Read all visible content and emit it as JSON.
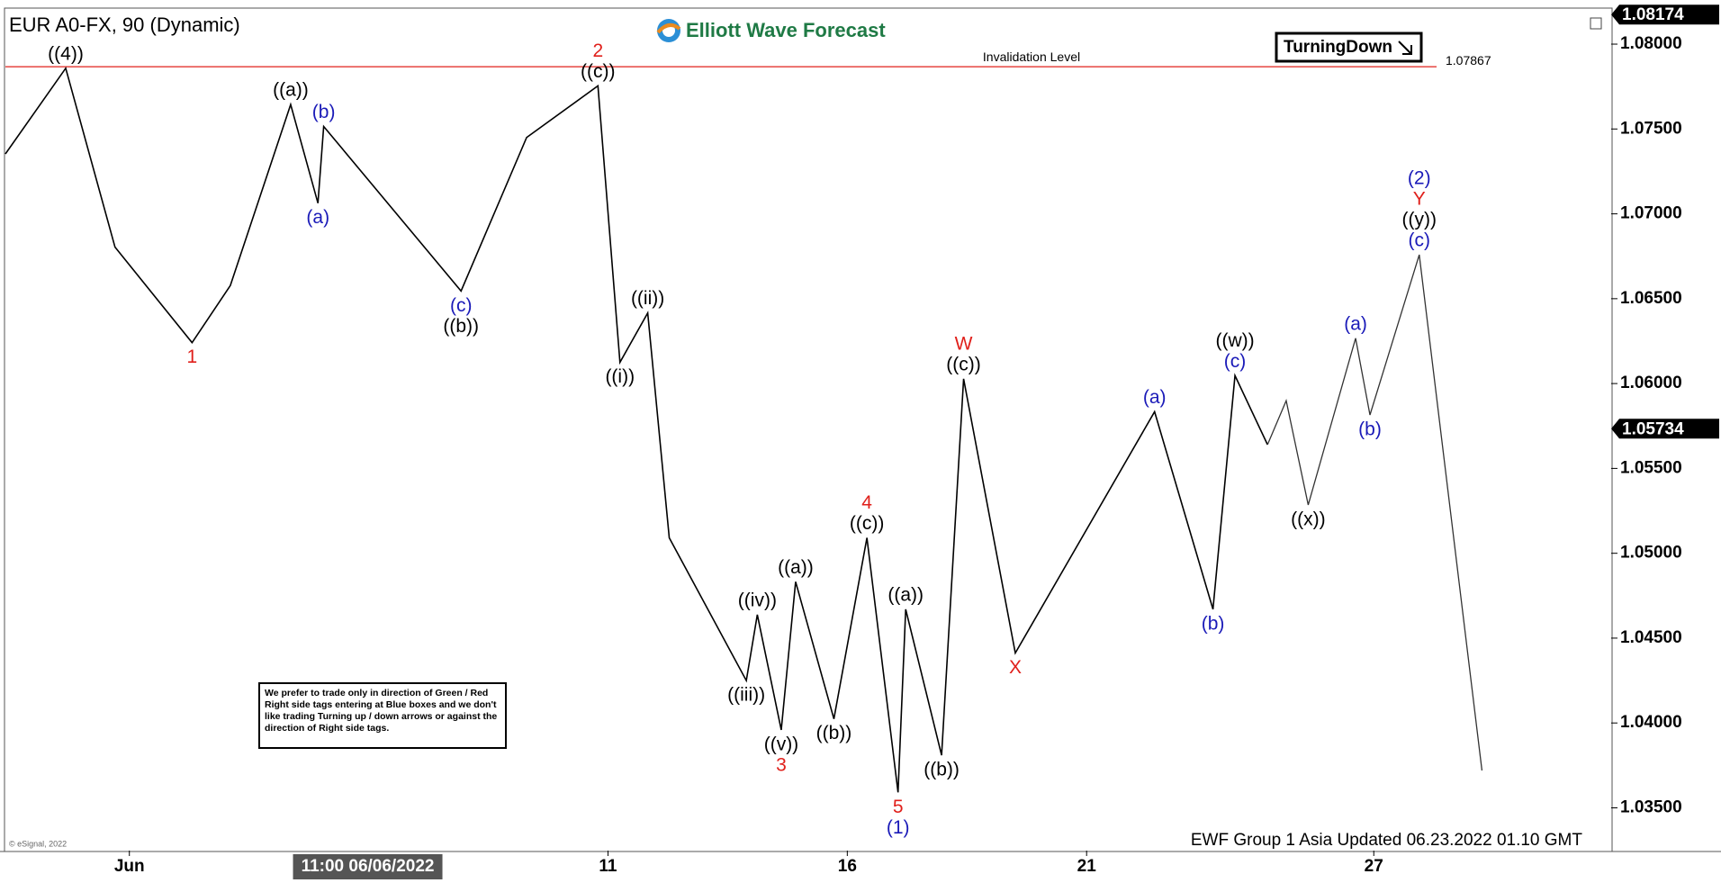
{
  "chart_data": {
    "type": "line",
    "title": "EUR A0-FX, 90 (Dynamic)",
    "logo": "Elliott Wave Forecast",
    "xlim": [
      -1.59,
      31.96
    ],
    "ylim": [
      1.03248,
      1.08207
    ],
    "xticks": [
      {
        "value": 1,
        "label": "Jun"
      },
      11,
      16,
      21,
      27
    ],
    "yticks": [
      {
        "value": 1.035,
        "label": "1.03500"
      },
      {
        "value": 1.04,
        "label": "1.04000"
      },
      {
        "value": 1.045,
        "label": "1.04500"
      },
      {
        "value": 1.05,
        "label": "1.05000"
      },
      {
        "value": 1.055,
        "label": "1.05500"
      },
      {
        "value": 1.06,
        "label": "1.06000"
      },
      {
        "value": 1.065,
        "label": "1.06500"
      },
      {
        "value": 1.07,
        "label": "1.07000"
      },
      {
        "value": 1.075,
        "label": "1.07500"
      },
      {
        "value": 1.08,
        "label": "1.08000"
      }
    ],
    "series": [
      {
        "color": "#000000",
        "x": [
          -1.59,
          -0.33,
          0.7,
          2.31,
          3.11,
          4.37,
          4.94,
          5.06,
          7.93,
          9.3,
          10.79,
          11.25,
          11.83,
          12.28,
          13.89,
          14.12,
          14.62,
          14.92,
          15.72,
          16.41,
          17.06,
          17.22,
          17.97,
          18.43,
          19.51,
          22.42,
          23.64,
          24.1,
          24.78
        ],
        "values": [
          1.07353,
          1.07858,
          1.06804,
          1.06241,
          1.06578,
          1.07644,
          1.07063,
          1.07515,
          1.06545,
          1.0745,
          1.07754,
          1.06125,
          1.06416,
          1.05091,
          1.0425,
          1.04638,
          1.03959,
          1.04832,
          1.04024,
          1.05091,
          1.03591,
          1.0467,
          1.0381,
          1.06028,
          1.04412,
          1.05834,
          1.0467,
          1.06047,
          1.0564
        ],
        "labels": [
          null,
          [
            {
              "text": "((4))",
              "color": "#000000"
            }
          ],
          null,
          [
            {
              "text": "1",
              "color": "#e0201b"
            }
          ],
          null,
          [
            {
              "text": "((a))",
              "color": "#000000"
            }
          ],
          [
            {
              "text": "(a)",
              "color": "#1a1ab8"
            }
          ],
          [
            {
              "text": "(b)",
              "color": "#1a1ab8"
            }
          ],
          [
            {
              "text": "(c)",
              "color": "#1a1ab8"
            },
            {
              "text": "((b))",
              "color": "#000000"
            }
          ],
          null,
          [
            {
              "text": "2",
              "color": "#e0201b"
            },
            {
              "text": "((c))",
              "color": "#000000"
            }
          ],
          [
            {
              "text": "((i))",
              "color": "#000000"
            }
          ],
          [
            {
              "text": "((ii))",
              "color": "#000000"
            }
          ],
          null,
          [
            {
              "text": "((iii))",
              "color": "#000000"
            }
          ],
          [
            {
              "text": "((iv))",
              "color": "#000000"
            }
          ],
          [
            {
              "text": "((v))",
              "color": "#000000"
            },
            {
              "text": "3",
              "color": "#e0201b"
            }
          ],
          [
            {
              "text": "((a))",
              "color": "#000000"
            }
          ],
          [
            {
              "text": "((b))",
              "color": "#000000"
            }
          ],
          [
            {
              "text": "4",
              "color": "#e0201b"
            },
            {
              "text": "((c))",
              "color": "#000000"
            }
          ],
          [
            {
              "text": "5",
              "color": "#e0201b"
            },
            {
              "text": "(1)",
              "color": "#1a1ab8"
            }
          ],
          [
            {
              "text": "((a))",
              "color": "#000000"
            }
          ],
          [
            {
              "text": "((b))",
              "color": "#000000"
            }
          ],
          [
            {
              "text": "W",
              "color": "#e0201b"
            },
            {
              "text": "((c))",
              "color": "#000000"
            }
          ],
          [
            {
              "text": "X",
              "color": "#e0201b"
            }
          ],
          [
            {
              "text": "(a)",
              "color": "#1a1ab8"
            }
          ],
          [
            {
              "text": "(b)",
              "color": "#1a1ab8"
            }
          ],
          [
            {
              "text": "((w))",
              "color": "#000000"
            },
            {
              "text": "(c)",
              "color": "#1a1ab8"
            }
          ],
          null
        ]
      },
      {
        "color": "#333333",
        "x": [
          24.78,
          25.17,
          25.63,
          26.62,
          26.92,
          27.95,
          29.26
        ],
        "values": [
          1.0564,
          1.05899,
          1.05285,
          1.06267,
          1.05815,
          1.06759,
          1.0372
        ],
        "labels": [
          null,
          null,
          [
            {
              "text": "((x))",
              "color": "#000000"
            }
          ],
          [
            {
              "text": "(a)",
              "color": "#1a1ab8"
            }
          ],
          [
            {
              "text": "(b)",
              "color": "#1a1ab8"
            }
          ],
          [
            {
              "text": "(2)",
              "color": "#1a1ab8"
            },
            {
              "text": "Y",
              "color": "#e0201b"
            },
            {
              "text": "((y))",
              "color": "#000000"
            },
            {
              "text": "(c)",
              "color": "#1a1ab8"
            }
          ],
          null
        ]
      }
    ],
    "invalidation": {
      "label": "Invalidation Level",
      "value": 1.07867,
      "color": "#e0201b"
    },
    "tag": "TurningDown",
    "last_price": 1.05734,
    "high_price": 1.08174,
    "cursor": {
      "x": 5.98,
      "label": "11:00 06/06/2022"
    },
    "note": "We prefer to trade only in direction of Green / Red Right side tags entering at Blue boxes and we don't like trading Turning up / down arrows or against the direction of Right side tags.",
    "footer": "EWF Group 1 Asia Updated 06.23.2022 01.10 GMT",
    "copyright": "© eSignal, 2022"
  }
}
